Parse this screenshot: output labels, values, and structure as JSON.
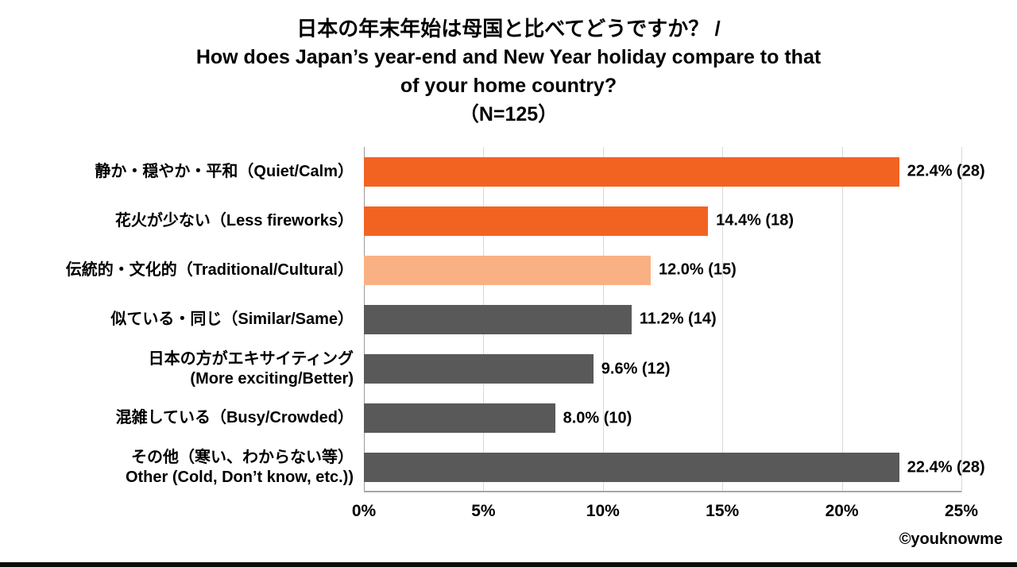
{
  "chart_data": {
    "type": "bar",
    "orientation": "horizontal",
    "title_lines": {
      "ja": "日本の年末年始は母国と比べてどうですか？ /",
      "en1": "How does Japan’s year-end and New Year holiday compare to that",
      "en2": "of your home country?",
      "n": "（N=125）"
    },
    "categories": [
      [
        "静か・穏やか・平和（Quiet/Calm）"
      ],
      [
        "花火が少ない（Less fireworks）"
      ],
      [
        "伝統的・文化的（Traditional/Cultural）"
      ],
      [
        "似ている・同じ（Similar/Same）"
      ],
      [
        "日本の方がエキサイティング",
        "(More exciting/Better)"
      ],
      [
        "混雑している（Busy/Crowded）"
      ],
      [
        "その他（寒い、わからない等）",
        "Other (Cold, Don’t know, etc.))"
      ]
    ],
    "values": [
      22.4,
      14.4,
      12.0,
      11.2,
      9.6,
      8.0,
      22.4
    ],
    "counts": [
      28,
      18,
      15,
      14,
      12,
      10,
      28
    ],
    "data_labels": [
      "22.4% (28)",
      "14.4% (18)",
      "12.0% (15)",
      "11.2% (14)",
      "9.6% (12)",
      "8.0% (10)",
      "22.4% (28)"
    ],
    "bar_colors": [
      "#f26322",
      "#f26322",
      "#f9b183",
      "#595959",
      "#595959",
      "#595959",
      "#595959"
    ],
    "xlim": [
      0,
      25
    ],
    "x_ticks": [
      "0%",
      "5%",
      "10%",
      "15%",
      "20%",
      "25%"
    ],
    "x_tick_values": [
      0,
      5,
      10,
      15,
      20,
      25
    ],
    "grid": "vertical",
    "legend": "none"
  },
  "colors": {
    "orange": "#f26322",
    "light_orange": "#f9b183",
    "dark_gray": "#595959",
    "gridline": "#d9d9d9",
    "axis": "#a6a6a6"
  },
  "credit": "©youknowme"
}
